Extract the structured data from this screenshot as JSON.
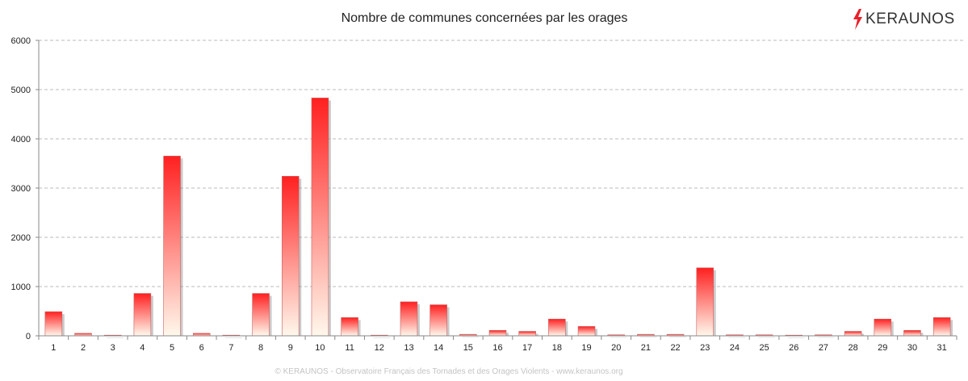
{
  "brand": {
    "name": "KERAUNOS"
  },
  "footer": "© KERAUNOS - Observatoire Français des Tornades et des Orages Violents - www.keraunos.org",
  "colors": {
    "bar_top": "#ff2020",
    "bar_bottom": "#fff8ec",
    "grid": "#bbbbbb",
    "axis": "#888888",
    "logo_bolt": "#e8202a"
  },
  "chart_data": {
    "type": "bar",
    "title": "Nombre de communes concernées par les orages",
    "xlabel": "",
    "ylabel": "",
    "ylim": [
      0,
      6000
    ],
    "yticks": [
      0,
      1000,
      2000,
      3000,
      4000,
      5000,
      6000
    ],
    "grid": true,
    "categories": [
      "1",
      "2",
      "3",
      "4",
      "5",
      "6",
      "7",
      "8",
      "9",
      "10",
      "11",
      "12",
      "13",
      "14",
      "15",
      "16",
      "17",
      "18",
      "19",
      "20",
      "21",
      "22",
      "23",
      "24",
      "25",
      "26",
      "27",
      "28",
      "29",
      "30",
      "31"
    ],
    "values": [
      490,
      50,
      5,
      860,
      3650,
      50,
      5,
      860,
      3240,
      4830,
      370,
      5,
      690,
      630,
      30,
      110,
      90,
      340,
      190,
      20,
      30,
      30,
      1380,
      20,
      20,
      5,
      20,
      90,
      340,
      110,
      370
    ]
  }
}
